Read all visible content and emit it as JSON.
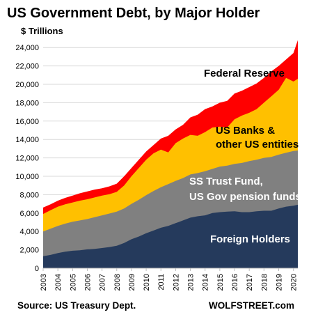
{
  "title": "US Government Debt, by Major Holder",
  "units_label": "$ Trillions",
  "source": "Source: US Treasury Dept.",
  "brand": "WOLFSTREET.com",
  "colors": {
    "foreign": "#253a5c",
    "ss_trust": "#808080",
    "us_banks": "#ffc000",
    "fed": "#ff0000",
    "grid": "#d9d9d9",
    "axis": "#bfbfbf"
  },
  "chart_data": {
    "type": "area",
    "stacked": true,
    "x": [
      "2003",
      "2004",
      "2005",
      "2006",
      "2007",
      "2008",
      "2009",
      "2010",
      "2011",
      "2012",
      "2013",
      "2014",
      "2015",
      "2016",
      "2017",
      "2018",
      "2019",
      "2020"
    ],
    "yticks": [
      "0",
      "2,000",
      "4,000",
      "6,000",
      "8,000",
      "10,000",
      "12,000",
      "14,000",
      "16,000",
      "18,000",
      "20,000",
      "22,000",
      "24,000"
    ],
    "ylim": [
      0,
      25000
    ],
    "grid": true,
    "series": [
      {
        "key": "foreign",
        "name": "Foreign Holders",
        "points": [
          [
            2003.0,
            1300
          ],
          [
            2003.5,
            1450
          ],
          [
            2004.0,
            1650
          ],
          [
            2004.5,
            1800
          ],
          [
            2005.0,
            1900
          ],
          [
            2005.5,
            1950
          ],
          [
            2006.0,
            2050
          ],
          [
            2006.5,
            2100
          ],
          [
            2007.0,
            2200
          ],
          [
            2007.5,
            2300
          ],
          [
            2008.0,
            2450
          ],
          [
            2008.5,
            2750
          ],
          [
            2009.0,
            3150
          ],
          [
            2009.5,
            3450
          ],
          [
            2010.0,
            3800
          ],
          [
            2010.5,
            4100
          ],
          [
            2011.0,
            4400
          ],
          [
            2011.5,
            4600
          ],
          [
            2012.0,
            4900
          ],
          [
            2012.5,
            5200
          ],
          [
            2013.0,
            5500
          ],
          [
            2013.5,
            5650
          ],
          [
            2014.0,
            5750
          ],
          [
            2014.5,
            6000
          ],
          [
            2015.0,
            6100
          ],
          [
            2015.5,
            6150
          ],
          [
            2016.0,
            6200
          ],
          [
            2016.5,
            6100
          ],
          [
            2017.0,
            6100
          ],
          [
            2017.5,
            6200
          ],
          [
            2018.0,
            6250
          ],
          [
            2018.5,
            6250
          ],
          [
            2019.0,
            6500
          ],
          [
            2019.5,
            6700
          ],
          [
            2020.0,
            6800
          ],
          [
            2020.3,
            6900
          ]
        ]
      },
      {
        "key": "ss_trust",
        "name": "SS Trust Fund, US Gov pension funds",
        "points": [
          [
            2003.0,
            4000
          ],
          [
            2003.5,
            4300
          ],
          [
            2004.0,
            4600
          ],
          [
            2004.5,
            4850
          ],
          [
            2005.0,
            5050
          ],
          [
            2005.5,
            5200
          ],
          [
            2006.0,
            5350
          ],
          [
            2006.5,
            5550
          ],
          [
            2007.0,
            5750
          ],
          [
            2007.5,
            5950
          ],
          [
            2008.0,
            6150
          ],
          [
            2008.5,
            6500
          ],
          [
            2009.0,
            7000
          ],
          [
            2009.5,
            7450
          ],
          [
            2010.0,
            7950
          ],
          [
            2010.5,
            8400
          ],
          [
            2011.0,
            8800
          ],
          [
            2011.5,
            9150
          ],
          [
            2012.0,
            9500
          ],
          [
            2012.5,
            9800
          ],
          [
            2013.0,
            10200
          ],
          [
            2013.5,
            10350
          ],
          [
            2014.0,
            10550
          ],
          [
            2014.5,
            10800
          ],
          [
            2015.0,
            11050
          ],
          [
            2015.5,
            11150
          ],
          [
            2016.0,
            11350
          ],
          [
            2016.5,
            11450
          ],
          [
            2017.0,
            11650
          ],
          [
            2017.5,
            11800
          ],
          [
            2018.0,
            12000
          ],
          [
            2018.5,
            12100
          ],
          [
            2019.0,
            12350
          ],
          [
            2019.5,
            12550
          ],
          [
            2020.0,
            12750
          ],
          [
            2020.3,
            12800
          ]
        ]
      },
      {
        "key": "us_banks",
        "name": "US Banks & other US entities",
        "points": [
          [
            2003.0,
            5900
          ],
          [
            2003.5,
            6300
          ],
          [
            2004.0,
            6700
          ],
          [
            2004.5,
            6950
          ],
          [
            2005.0,
            7150
          ],
          [
            2005.5,
            7350
          ],
          [
            2006.0,
            7500
          ],
          [
            2006.5,
            7700
          ],
          [
            2007.0,
            7900
          ],
          [
            2007.5,
            8050
          ],
          [
            2008.0,
            8300
          ],
          [
            2008.5,
            9000
          ],
          [
            2009.0,
            10000
          ],
          [
            2009.5,
            10900
          ],
          [
            2010.0,
            11800
          ],
          [
            2010.5,
            12500
          ],
          [
            2011.0,
            12900
          ],
          [
            2011.5,
            12600
          ],
          [
            2012.0,
            13600
          ],
          [
            2012.5,
            14100
          ],
          [
            2013.0,
            14500
          ],
          [
            2013.5,
            14400
          ],
          [
            2014.0,
            14800
          ],
          [
            2014.5,
            15300
          ],
          [
            2015.0,
            15400
          ],
          [
            2015.5,
            15300
          ],
          [
            2016.0,
            16200
          ],
          [
            2016.5,
            16600
          ],
          [
            2017.0,
            16900
          ],
          [
            2017.5,
            17300
          ],
          [
            2018.0,
            18000
          ],
          [
            2018.5,
            18700
          ],
          [
            2019.0,
            19400
          ],
          [
            2019.5,
            20700
          ],
          [
            2020.0,
            20300
          ],
          [
            2020.3,
            20600
          ]
        ]
      },
      {
        "key": "fed",
        "name": "Federal Reserve",
        "points": [
          [
            2003.0,
            6600
          ],
          [
            2003.5,
            6950
          ],
          [
            2004.0,
            7350
          ],
          [
            2004.5,
            7650
          ],
          [
            2005.0,
            7900
          ],
          [
            2005.5,
            8150
          ],
          [
            2006.0,
            8350
          ],
          [
            2006.5,
            8550
          ],
          [
            2007.0,
            8700
          ],
          [
            2007.5,
            8900
          ],
          [
            2008.0,
            9200
          ],
          [
            2008.5,
            10000
          ],
          [
            2009.0,
            10900
          ],
          [
            2009.5,
            11800
          ],
          [
            2010.0,
            12700
          ],
          [
            2010.5,
            13400
          ],
          [
            2011.0,
            14100
          ],
          [
            2011.5,
            14400
          ],
          [
            2012.0,
            15100
          ],
          [
            2012.5,
            15600
          ],
          [
            2013.0,
            16400
          ],
          [
            2013.5,
            16700
          ],
          [
            2014.0,
            17300
          ],
          [
            2014.5,
            17600
          ],
          [
            2015.0,
            18000
          ],
          [
            2015.5,
            18200
          ],
          [
            2016.0,
            19000
          ],
          [
            2016.5,
            19300
          ],
          [
            2017.0,
            19700
          ],
          [
            2017.5,
            20100
          ],
          [
            2018.0,
            20700
          ],
          [
            2018.5,
            21400
          ],
          [
            2019.0,
            22000
          ],
          [
            2019.5,
            22700
          ],
          [
            2020.0,
            23400
          ],
          [
            2020.3,
            24800
          ]
        ]
      }
    ],
    "annotations": [
      {
        "key": "fed",
        "lines": [
          "Federal Reserve"
        ],
        "color": "#000000"
      },
      {
        "key": "us_banks",
        "lines": [
          "US Banks &",
          "other US entities"
        ],
        "color": "#000000"
      },
      {
        "key": "ss_trust",
        "lines": [
          "SS Trust Fund,",
          "US Gov pension funds"
        ],
        "color": "#ffffff"
      },
      {
        "key": "foreign",
        "lines": [
          "Foreign Holders"
        ],
        "color": "#ffffff"
      }
    ]
  }
}
